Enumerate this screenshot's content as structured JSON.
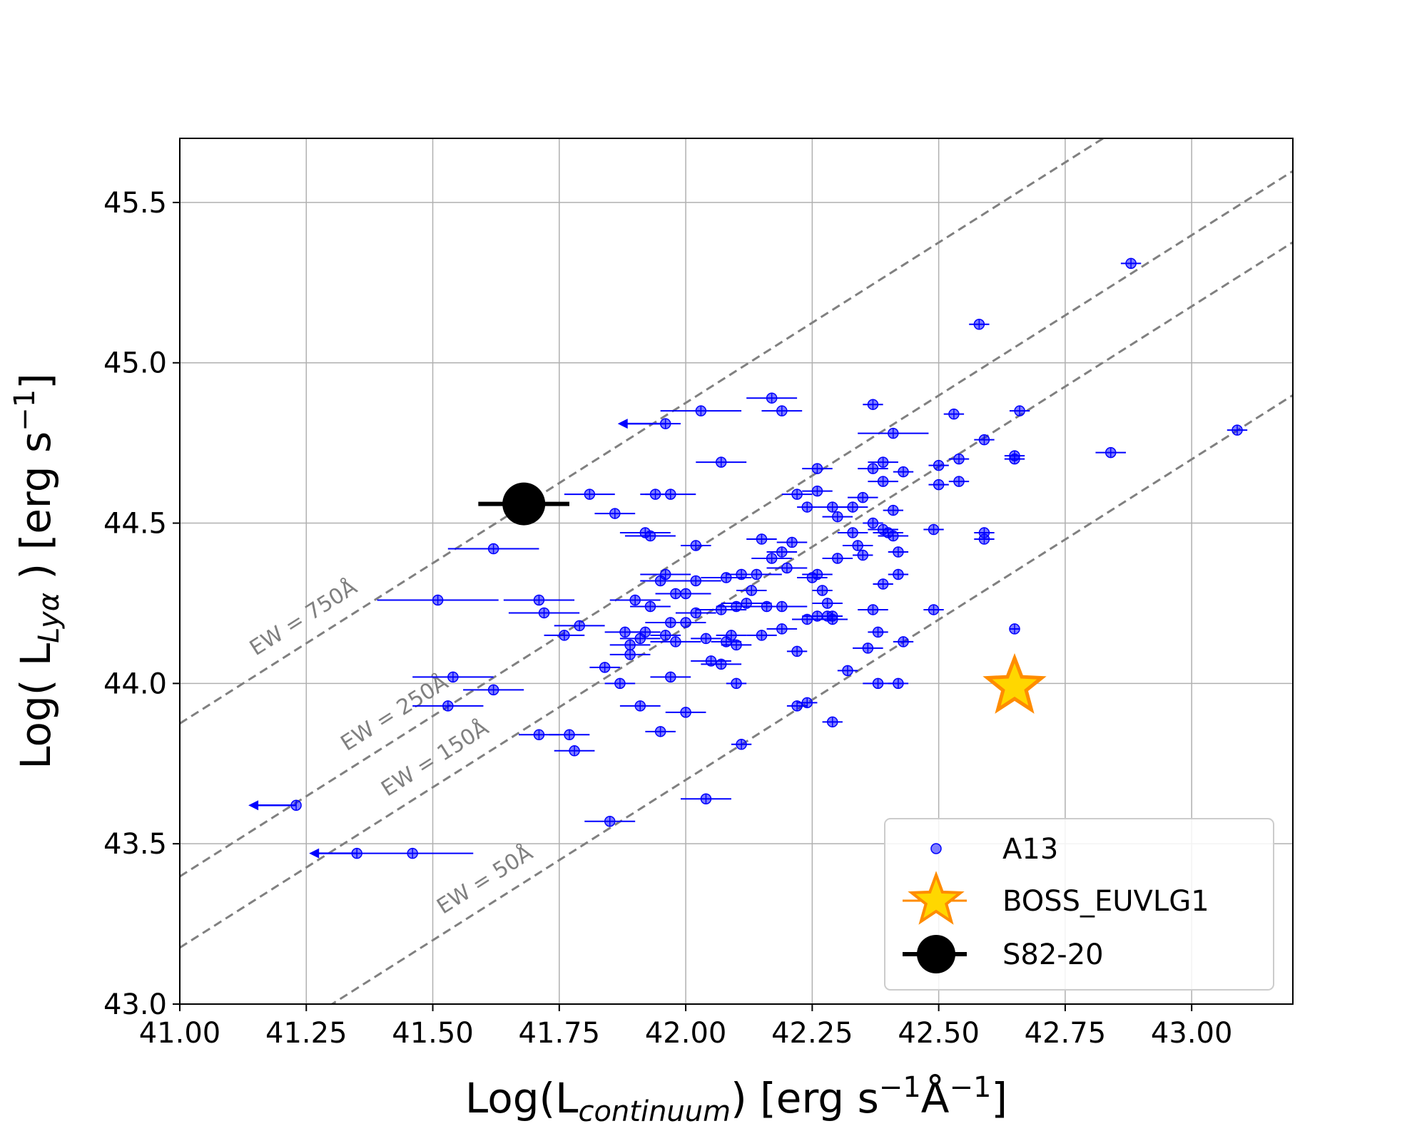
{
  "chart_data": {
    "type": "scatter",
    "title": "",
    "xlabel": {
      "main": "Log(L",
      "sub": "continuum",
      "rest": ") [erg s",
      "sup1": "−1",
      "mid": "Å",
      "sup2": "−1",
      "end": "]"
    },
    "ylabel": {
      "main": "Log( L",
      "sub": "Lyα",
      "rest": " ) [erg s",
      "sup": "−1",
      "end": "]"
    },
    "xlim": [
      41.0,
      43.2
    ],
    "ylim": [
      43.0,
      45.7
    ],
    "xticks": [
      "41.00",
      "41.25",
      "41.50",
      "41.75",
      "42.00",
      "42.25",
      "42.50",
      "42.75",
      "43.00"
    ],
    "yticks": [
      "43.0",
      "43.5",
      "44.0",
      "44.5",
      "45.0",
      "45.5"
    ],
    "grid": true,
    "legend_position": "bottom-right",
    "colors": {
      "a13": "#0000ff",
      "star_fill": "#ffd700",
      "star_edge": "#ff8c00",
      "s82": "#000000",
      "ew": "#808080",
      "grid": "#b0b0b0"
    },
    "ew_lines": [
      {
        "label": "EW = 750Å",
        "intercept": 2.875
      },
      {
        "label": "EW = 250Å",
        "intercept": 2.398
      },
      {
        "label": "EW = 150Å",
        "intercept": 2.176
      },
      {
        "label": "EW = 50Å",
        "intercept": 1.699
      }
    ],
    "series": [
      {
        "name": "A13",
        "marker": "circle",
        "points": [
          [
            41.96,
            44.81,
            0.03
          ],
          [
            42.03,
            44.85,
            0.08
          ],
          [
            42.17,
            44.89,
            0.05
          ],
          [
            42.19,
            44.85,
            0.04
          ],
          [
            42.37,
            44.87,
            0.02
          ],
          [
            42.07,
            44.69,
            0.05
          ],
          [
            41.81,
            44.59,
            0.05
          ],
          [
            41.86,
            44.53,
            0.04
          ],
          [
            41.94,
            44.59,
            0.03
          ],
          [
            41.97,
            44.59,
            0.05
          ],
          [
            41.92,
            44.47,
            0.05
          ],
          [
            41.93,
            44.46,
            0.05
          ],
          [
            42.02,
            44.43,
            0.03
          ],
          [
            41.62,
            44.42,
            0.09
          ],
          [
            41.95,
            44.32,
            0.04
          ],
          [
            41.96,
            44.34,
            0.05
          ],
          [
            42.02,
            44.32,
            0.05
          ],
          [
            41.98,
            44.28,
            0.04
          ],
          [
            42.0,
            44.28,
            0.05
          ],
          [
            41.51,
            44.26,
            0.12
          ],
          [
            41.71,
            44.26,
            0.07
          ],
          [
            41.72,
            44.22,
            0.07
          ],
          [
            41.76,
            44.15,
            0.04
          ],
          [
            41.79,
            44.18,
            0.05
          ],
          [
            41.9,
            44.26,
            0.05
          ],
          [
            41.93,
            44.24,
            0.04
          ],
          [
            41.97,
            44.19,
            0.05
          ],
          [
            42.0,
            44.19,
            0.04
          ],
          [
            42.07,
            44.23,
            0.05
          ],
          [
            42.08,
            44.33,
            0.05
          ],
          [
            42.11,
            44.34,
            0.03
          ],
          [
            42.14,
            44.34,
            0.05
          ],
          [
            42.13,
            44.29,
            0.03
          ],
          [
            42.1,
            44.24,
            0.04
          ],
          [
            42.12,
            44.25,
            0.05
          ],
          [
            42.15,
            44.45,
            0.03
          ],
          [
            42.17,
            44.39,
            0.04
          ],
          [
            42.19,
            44.41,
            0.03
          ],
          [
            42.21,
            44.44,
            0.03
          ],
          [
            42.2,
            44.36,
            0.04
          ],
          [
            42.16,
            44.24,
            0.04
          ],
          [
            42.19,
            44.24,
            0.05
          ],
          [
            41.88,
            44.16,
            0.04
          ],
          [
            41.89,
            44.12,
            0.04
          ],
          [
            41.89,
            44.09,
            0.04
          ],
          [
            41.92,
            44.16,
            0.03
          ],
          [
            41.91,
            44.14,
            0.04
          ],
          [
            41.96,
            44.15,
            0.03
          ],
          [
            41.98,
            44.13,
            0.05
          ],
          [
            42.02,
            44.22,
            0.04
          ],
          [
            42.04,
            44.14,
            0.03
          ],
          [
            42.08,
            44.13,
            0.03
          ],
          [
            42.09,
            44.15,
            0.03
          ],
          [
            42.1,
            44.12,
            0.03
          ],
          [
            42.15,
            44.15,
            0.03
          ],
          [
            42.19,
            44.17,
            0.03
          ],
          [
            42.24,
            44.2,
            0.03
          ],
          [
            42.26,
            44.21,
            0.03
          ],
          [
            42.28,
            44.21,
            0.03
          ],
          [
            42.29,
            44.2,
            0.03
          ],
          [
            42.22,
            44.1,
            0.02
          ],
          [
            41.84,
            44.05,
            0.03
          ],
          [
            41.87,
            44.0,
            0.03
          ],
          [
            41.97,
            44.02,
            0.04
          ],
          [
            42.05,
            44.07,
            0.04
          ],
          [
            42.07,
            44.06,
            0.04
          ],
          [
            42.1,
            44.0,
            0.02
          ],
          [
            41.54,
            44.02,
            0.08
          ],
          [
            41.62,
            43.98,
            0.06
          ],
          [
            41.53,
            43.93,
            0.07
          ],
          [
            41.91,
            43.93,
            0.04
          ],
          [
            42.0,
            43.91,
            0.04
          ],
          [
            42.22,
            43.93,
            0.02
          ],
          [
            42.24,
            43.94,
            0.02
          ],
          [
            42.29,
            43.88,
            0.02
          ],
          [
            41.71,
            43.84,
            0.04
          ],
          [
            41.77,
            43.84,
            0.04
          ],
          [
            41.78,
            43.79,
            0.04
          ],
          [
            41.95,
            43.85,
            0.03
          ],
          [
            42.11,
            43.81,
            0.02
          ],
          [
            42.04,
            43.64,
            0.05
          ],
          [
            41.85,
            43.57,
            0.05
          ],
          [
            41.23,
            43.62,
            0.0
          ],
          [
            41.35,
            43.47,
            0.0
          ],
          [
            41.46,
            43.47,
            0.12
          ],
          [
            42.26,
            44.67,
            0.03
          ],
          [
            42.26,
            44.6,
            0.03
          ],
          [
            42.22,
            44.59,
            0.03
          ],
          [
            42.24,
            44.55,
            0.02
          ],
          [
            42.29,
            44.55,
            0.03
          ],
          [
            42.3,
            44.52,
            0.03
          ],
          [
            42.33,
            44.47,
            0.03
          ],
          [
            42.33,
            44.55,
            0.03
          ],
          [
            42.35,
            44.58,
            0.03
          ],
          [
            42.34,
            44.43,
            0.03
          ],
          [
            42.35,
            44.4,
            0.02
          ],
          [
            42.3,
            44.39,
            0.03
          ],
          [
            42.25,
            44.33,
            0.03
          ],
          [
            42.26,
            44.34,
            0.03
          ],
          [
            42.27,
            44.29,
            0.02
          ],
          [
            42.28,
            44.25,
            0.03
          ],
          [
            42.37,
            44.23,
            0.03
          ],
          [
            42.29,
            44.21,
            0.02
          ],
          [
            42.36,
            44.11,
            0.03
          ],
          [
            42.38,
            44.16,
            0.02
          ],
          [
            42.32,
            44.04,
            0.02
          ],
          [
            42.38,
            44.0,
            0.03
          ],
          [
            42.42,
            44.0,
            0.02
          ],
          [
            42.43,
            44.13,
            0.02
          ],
          [
            42.39,
            44.31,
            0.02
          ],
          [
            42.42,
            44.34,
            0.02
          ],
          [
            42.42,
            44.41,
            0.02
          ],
          [
            42.37,
            44.5,
            0.02
          ],
          [
            42.39,
            44.48,
            0.03
          ],
          [
            42.4,
            44.47,
            0.03
          ],
          [
            42.41,
            44.46,
            0.03
          ],
          [
            42.41,
            44.54,
            0.02
          ],
          [
            42.37,
            44.67,
            0.03
          ],
          [
            42.39,
            44.69,
            0.03
          ],
          [
            42.39,
            44.63,
            0.03
          ],
          [
            42.43,
            44.66,
            0.02
          ],
          [
            42.41,
            44.78,
            0.07
          ],
          [
            42.49,
            44.48,
            0.02
          ],
          [
            42.49,
            44.23,
            0.02
          ],
          [
            42.5,
            44.68,
            0.02
          ],
          [
            42.5,
            44.62,
            0.02
          ],
          [
            42.54,
            44.63,
            0.02
          ],
          [
            42.54,
            44.7,
            0.02
          ],
          [
            42.53,
            44.84,
            0.02
          ],
          [
            42.59,
            44.76,
            0.02
          ],
          [
            42.59,
            44.47,
            0.02
          ],
          [
            42.59,
            44.45,
            0.02
          ],
          [
            42.65,
            44.71,
            0.02
          ],
          [
            42.65,
            44.7,
            0.02
          ],
          [
            42.66,
            44.85,
            0.02
          ],
          [
            42.65,
            44.17,
            0.01
          ],
          [
            42.58,
            45.12,
            0.02
          ],
          [
            42.84,
            44.72,
            0.03
          ],
          [
            42.88,
            45.31,
            0.02
          ],
          [
            43.09,
            44.79,
            0.02
          ]
        ],
        "upper_limits": [
          [
            41.96,
            44.81
          ],
          [
            41.23,
            43.62
          ],
          [
            41.35,
            43.47
          ]
        ]
      },
      {
        "name": "BOSS_EUVLG1",
        "marker": "star",
        "points": [
          [
            42.65,
            43.99,
            0.0
          ]
        ]
      },
      {
        "name": "S82-20",
        "marker": "big-circle",
        "points": [
          [
            41.68,
            44.56,
            0.09
          ]
        ]
      }
    ]
  }
}
